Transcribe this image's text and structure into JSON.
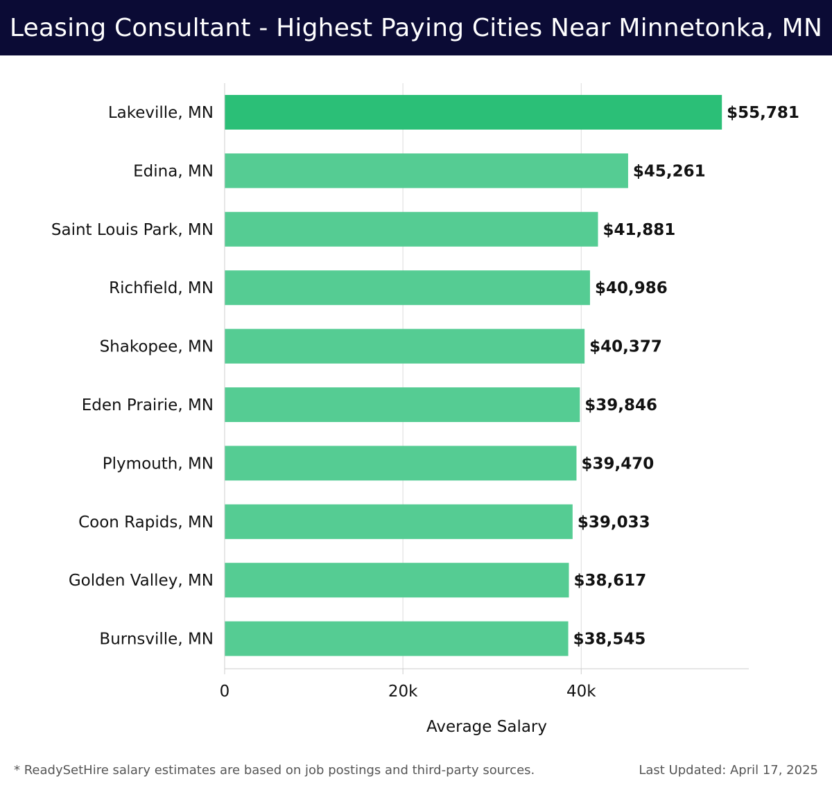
{
  "header": {
    "title": "Leasing Consultant - Highest Paying Cities Near Minnetonka, MN"
  },
  "footer": {
    "note": "* ReadySetHire salary estimates are based on job postings and third-party sources.",
    "updated": "Last Updated: April 17, 2025"
  },
  "colors": {
    "title_bg": "#0b0b35",
    "bar_top": "#2bbf77",
    "bar": "#55cc93",
    "grid": "#dddddd"
  },
  "chart_data": {
    "type": "bar",
    "orientation": "horizontal",
    "title": "Leasing Consultant - Highest Paying Cities Near Minnetonka, MN",
    "xlabel": "Average Salary",
    "ylabel": "",
    "categories": [
      "Lakeville, MN",
      "Edina, MN",
      "Saint Louis Park, MN",
      "Richfield, MN",
      "Shakopee, MN",
      "Eden Prairie, MN",
      "Plymouth, MN",
      "Coon Rapids, MN",
      "Golden Valley, MN",
      "Burnsville, MN"
    ],
    "values": [
      55781,
      45261,
      41881,
      40986,
      40377,
      39846,
      39470,
      39033,
      38617,
      38545
    ],
    "value_labels": [
      "$55,781",
      "$45,261",
      "$41,881",
      "$40,986",
      "$40,377",
      "$39,846",
      "$39,470",
      "$39,033",
      "$38,617",
      "$38,545"
    ],
    "xlim": [
      0,
      58800
    ],
    "xticks": [
      0,
      20000,
      40000
    ],
    "xtick_labels": [
      "0",
      "20k",
      "40k"
    ],
    "grid": true,
    "legend": "none"
  }
}
